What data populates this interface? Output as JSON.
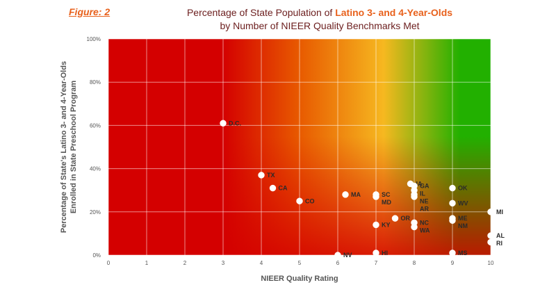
{
  "figure_label": "Figure: 2",
  "title": {
    "line1_pre": "Percentage of State Population of ",
    "line1_highlight": "Latino 3- and 4-Year-Olds",
    "line2": "by Number of NIEER Quality Benchmarks Met"
  },
  "chart_data": {
    "type": "scatter",
    "xlabel": "NIEER Quality Rating",
    "ylabel_line1": "Percentage of State's Latino 3- and 4-Year-Olds",
    "ylabel_line2": "Enrolled in State Preschool Program",
    "xlim": [
      0,
      10
    ],
    "ylim": [
      0,
      100
    ],
    "x_ticks": [
      "0",
      "1",
      "2",
      "3",
      "4",
      "5",
      "6",
      "7",
      "8",
      "9",
      "10"
    ],
    "y_ticks": [
      "0%",
      "20%",
      "40%",
      "60%",
      "80%",
      "100%"
    ],
    "grid": true,
    "points": [
      {
        "label": "D.C.",
        "x": 3,
        "y": 61
      },
      {
        "label": "TX",
        "x": 4,
        "y": 37
      },
      {
        "label": "CA",
        "x": 4.3,
        "y": 31
      },
      {
        "label": "CO",
        "x": 5,
        "y": 25
      },
      {
        "label": "MA",
        "x": 6.2,
        "y": 28
      },
      {
        "label": "SC",
        "x": 7,
        "y": 28
      },
      {
        "label": "MD",
        "x": 7,
        "y": 27
      },
      {
        "label": "IA",
        "x": 7.9,
        "y": 33
      },
      {
        "label": "GA",
        "x": 8,
        "y": 32
      },
      {
        "label": "IL",
        "x": 8,
        "y": 30
      },
      {
        "label": "NE",
        "x": 8,
        "y": 28
      },
      {
        "label": "AR",
        "x": 8,
        "y": 27
      },
      {
        "label": "OK",
        "x": 9,
        "y": 31
      },
      {
        "label": "WV",
        "x": 9,
        "y": 24
      },
      {
        "label": "MI",
        "x": 10,
        "y": 20
      },
      {
        "label": "OR",
        "x": 7.5,
        "y": 17
      },
      {
        "label": "KY",
        "x": 7,
        "y": 14
      },
      {
        "label": "NC",
        "x": 8,
        "y": 15
      },
      {
        "label": "WA",
        "x": 8,
        "y": 13
      },
      {
        "label": "ME",
        "x": 9,
        "y": 17
      },
      {
        "label": "NM",
        "x": 9,
        "y": 16
      },
      {
        "label": "AL",
        "x": 10,
        "y": 9
      },
      {
        "label": "RI",
        "x": 10,
        "y": 6
      },
      {
        "label": "NV",
        "x": 6,
        "y": 0
      },
      {
        "label": "HI",
        "x": 7,
        "y": 1
      },
      {
        "label": "MS",
        "x": 9,
        "y": 1
      }
    ],
    "background_colors": [
      "#d40000",
      "#e85a00",
      "#f6b820",
      "#f2d62a",
      "#22b000"
    ]
  }
}
